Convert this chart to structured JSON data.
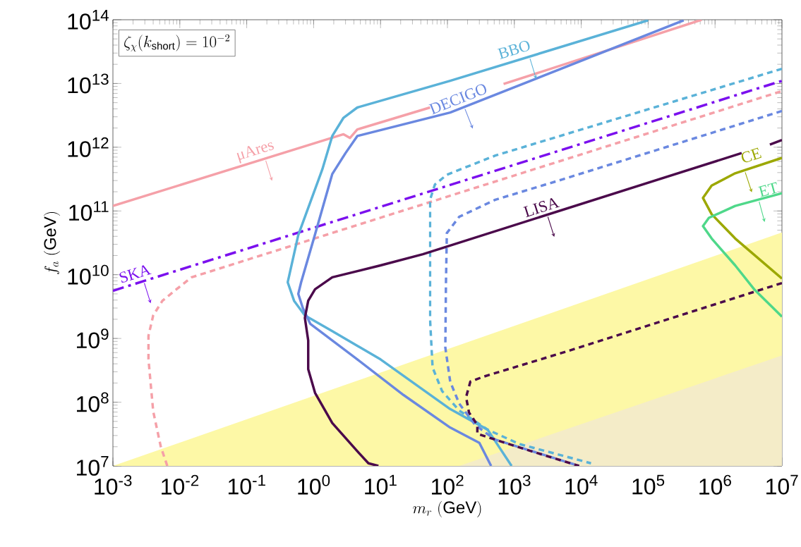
{
  "chart_data": {
    "type": "line",
    "log": "xy",
    "xlabel": "m_{r}\\ (\\mathrm{GeV})",
    "ylabel": "f_{a}\\ (\\mathrm{GeV})",
    "annotations": [
      "\\zeta_{\\chi}(k_{\\mathrm{short}}) = 10^{-2}"
    ],
    "xlim": [
      0.001,
      10000000
    ],
    "ylim": [
      10000000,
      100000000000000
    ],
    "xticks": [
      {
        "value": 0.001,
        "label": "10$^{-3}$"
      },
      {
        "value": 0.01,
        "label": "10$^{-2}$"
      },
      {
        "value": 0.1,
        "label": "10$^{-1}$"
      },
      {
        "value": 1,
        "label": "10$^{0}$"
      },
      {
        "value": 10,
        "label": "10$^{1}$"
      },
      {
        "value": 100,
        "label": "10$^{2}$"
      },
      {
        "value": 1000,
        "label": "10$^{3}$"
      },
      {
        "value": 10000,
        "label": "10$^{4}$"
      },
      {
        "value": 100000,
        "label": "10$^{5}$"
      },
      {
        "value": 1000000,
        "label": "10$^{6}$"
      },
      {
        "value": 10000000,
        "label": "10$^{7}$"
      }
    ],
    "yticks": [
      {
        "value": 10000000,
        "label": "10$^{7}$"
      },
      {
        "value": 100000000,
        "label": "10$^{8}$"
      },
      {
        "value": 1000000000,
        "label": "10$^{9}$"
      },
      {
        "value": 10000000000,
        "label": "10$^{10}$"
      },
      {
        "value": 100000000000,
        "label": "10$^{11}$"
      },
      {
        "value": 1000000000000,
        "label": "10$^{12}$"
      },
      {
        "value": 10000000000000,
        "label": "10$^{13}$"
      },
      {
        "value": 100000000000000,
        "label": "10$^{14}$"
      }
    ],
    "series": [
      {
        "type": "area",
        "color": "#fdf8a6",
        "x": [
          0.001,
          10000000
        ],
        "values": [
          10000000,
          46000000000.0
        ]
      },
      {
        "type": "area",
        "color": "#f4ecc8",
        "x": [
          150,
          10000000
        ],
        "values": [
          10000000,
          540000000.0
        ]
      },
      {
        "name": "μAres",
        "color": "#f5a0a8",
        "x": [
          0.001,
          2.8,
          3.5,
          4.5,
          55,
          200,
          690,
          630000
        ],
        "values": [
          120000000000.0,
          1600000000000.0,
          1400000000000.0,
          1900000000000.0,
          4200000000000.0,
          null,
          9800000000000.0,
          100000000000000.0
        ]
      },
      {
        "color": "#f5a0a8",
        "line_style": "dashed",
        "x": [
          0.0065,
          0.0052,
          0.004,
          0.0034,
          0.0034,
          0.004,
          0.0055,
          0.0089,
          0.015,
          10000000
        ],
        "values": [
          10000000.0,
          20000000.0,
          72000000.0,
          470000000.0,
          1100000000.0,
          2300000000.0,
          3900000000.0,
          5900000000.0,
          9100000000.0,
          7600000000000.0
        ]
      },
      {
        "name": "SKA",
        "color": "#7b10ee",
        "line_style": "dashdot",
        "x": [
          0.001,
          10000000
        ],
        "values": [
          5600000000.0,
          11000000000000.0
        ]
      },
      {
        "name": "BBO",
        "color": "#5ab2d8",
        "x": [
          100000,
          110,
          4.5,
          2.8,
          1.9,
          1.35,
          0.59,
          0.41,
          0.51,
          0.74,
          1.9,
          10,
          110,
          400,
          910
        ],
        "values": [
          98000000000000.0,
          11000000000000.0,
          4200000000000.0,
          2900000000000.0,
          1500000000000.0,
          450000000000.0,
          42000000000.0,
          7600000000.0,
          3900000000.0,
          2300000000.0,
          1300000000.0,
          470000000.0,
          78000000.0,
          37000000.0,
          10000000.0
        ]
      },
      {
        "name": "DECIGO",
        "color": "#6a88e0",
        "x": [
          340000,
          110,
          4.5,
          3,
          1.9,
          1.05,
          0.65,
          0.59,
          0.69,
          0.89,
          4.5,
          22,
          110,
          300,
          450
        ],
        "values": [
          98000000000000.0,
          3500000000000.0,
          1500000000000.0,
          810000000000.0,
          380000000000.0,
          43000000000.0,
          7600000000.0,
          5000000000.0,
          3000000000.0,
          1700000000.0,
          470000000.0,
          130000000.0,
          40000000.0,
          23000000.0,
          10000000.0
        ]
      },
      {
        "color": "#5ab2d8",
        "line_style": "dashed",
        "x": [
          10000000,
          520,
          98,
          65,
          55,
          55,
          60,
          83,
          150,
          400,
          1200,
          14000
        ],
        "values": [
          17000000000000.0,
          740000000000.0,
          370000000000.0,
          260000000000.0,
          150000000000.0,
          2000000000.0,
          350000000.0,
          150000000.0,
          74000000.0,
          37000000.0,
          22000000.0,
          11000000.0
        ]
      },
      {
        "color": "#6a88e0",
        "line_style": "dashed",
        "x": [
          10000000,
          5100,
          520,
          150,
          98,
          95,
          93,
          110,
          150,
          260,
          510,
          9300
        ],
        "values": [
          3700000000000.0,
          310000000000.0,
          150000000000.0,
          81000000000.0,
          45000000000.0,
          7100000000.0,
          720000000.0,
          210000000.0,
          95000000.0,
          44000000.0,
          26000000.0,
          10000000.0
        ]
      },
      {
        "name": "LISA",
        "color": "#4b0a4b",
        "x": [
          10000000,
          6600000,
          4000000,
          2500000,
          43,
          10,
          1.9,
          1.05,
          0.83,
          0.74,
          0.83,
          0.83,
          1.05,
          1.9,
          4.5,
          6.6,
          9.3
        ],
        "values": [
          1300000000000.0,
          1100000000000.0,
          null,
          810000000000.0,
          21000000000.0,
          14000000000.0,
          9100000000.0,
          5900000000.0,
          3900000000.0,
          2100000000.0,
          930000000.0,
          330000000.0,
          140000000.0,
          47000000.0,
          17000000.0,
          11000000.0,
          10000000.0
        ]
      },
      {
        "color": "#4b0a4b",
        "line_style": "dashed",
        "x": [
          10000000,
          6200,
          340,
          220,
          190,
          210,
          280,
          280,
          510,
          1800,
          9300
        ],
        "values": [
          7400000000.0,
          630000000.0,
          250000000.0,
          210000000.0,
          120000000.0,
          69000000.0,
          44000000.0,
          32000000.0,
          26000000.0,
          17000000.0,
          10000000.0
        ]
      },
      {
        "name": "CE",
        "color": "#9ca800",
        "x": [
          10000000,
          2000000,
          890000,
          660000,
          890000,
          2000000,
          10000000
        ],
        "values": [
          680000000000.0,
          390000000000.0,
          250000000000.0,
          160000000000.0,
          89000000000.0,
          37000000000.0,
          8700000000.0
        ]
      },
      {
        "name": "ET",
        "color": "#4fd88a",
        "x": [
          10000000,
          2000000,
          810000,
          660000,
          890000,
          2000000,
          3900000,
          10000000
        ],
        "values": [
          190000000000.0,
          120000000000.0,
          78000000000.0,
          58000000000.0,
          37000000000.0,
          14000000000.0,
          5800000000.0,
          2200000000.0
        ]
      }
    ]
  }
}
